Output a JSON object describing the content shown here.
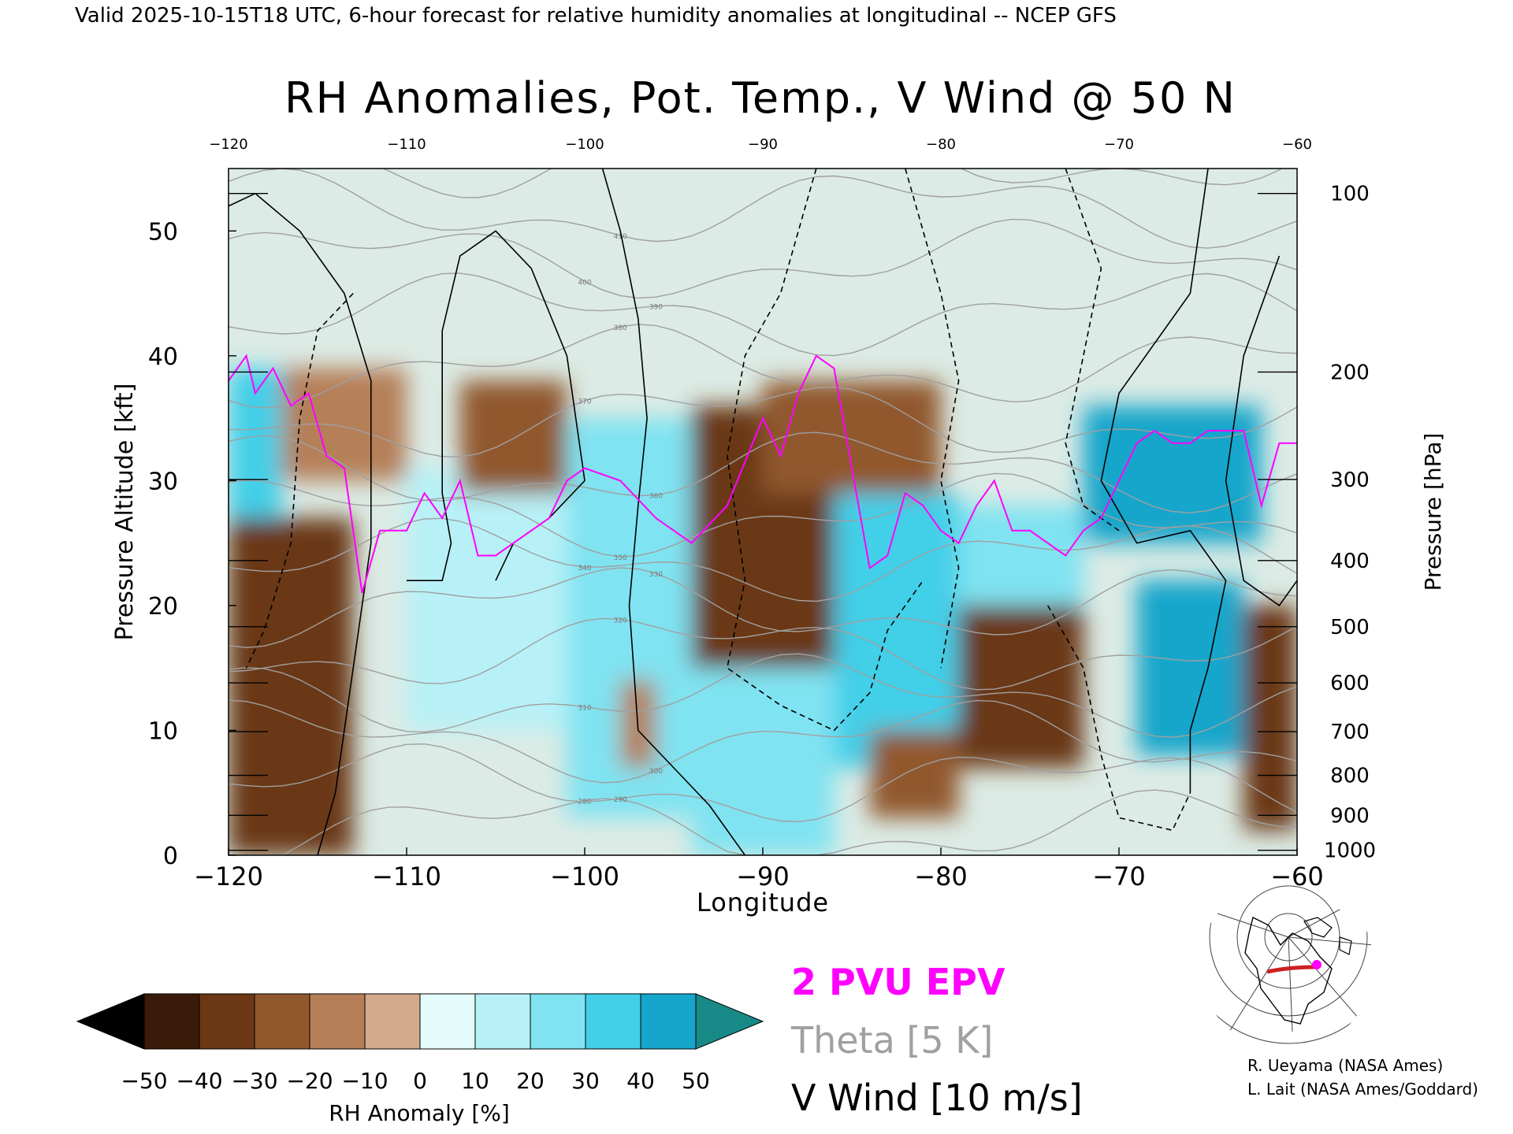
{
  "header": {
    "valid_line": "Valid 2025-10-15T18 UTC, 6-hour forecast for relative humidity anomalies at longitudinal -- NCEP GFS"
  },
  "chart_data": {
    "type": "heatmap",
    "title": "RH Anomalies, Pot. Temp., V Wind @ 50 N",
    "xlabel": "Longitude",
    "ylabel": "Pressure Altitude [kft]",
    "y2label": "Pressure [hPa]",
    "xlim": [
      -120,
      -60
    ],
    "ylim": [
      0,
      55
    ],
    "x_ticks": [
      -120,
      -110,
      -100,
      -90,
      -80,
      -70,
      -60
    ],
    "x_tick_labels": [
      "−120",
      "−110",
      "−100",
      "−90",
      "−80",
      "−70",
      "−60"
    ],
    "top_tick_labels": [
      "−120",
      "−110",
      "−100",
      "−90",
      "−80",
      "−70",
      "−60"
    ],
    "y_ticks": [
      0,
      10,
      20,
      30,
      40,
      50
    ],
    "pressure_ticks": [
      {
        "hPa": "100",
        "kft": 53.0
      },
      {
        "hPa": "200",
        "kft": 38.7
      },
      {
        "hPa": "300",
        "kft": 30.1
      },
      {
        "hPa": "400",
        "kft": 23.6
      },
      {
        "hPa": "500",
        "kft": 18.3
      },
      {
        "hPa": "600",
        "kft": 13.8
      },
      {
        "hPa": "700",
        "kft": 9.9
      },
      {
        "hPa": "800",
        "kft": 6.4
      },
      {
        "hPa": "900",
        "kft": 3.2
      },
      {
        "hPa": "1000",
        "kft": 0.4
      }
    ],
    "rh_regions": [
      {
        "x0": -120,
        "x1": -113,
        "y0": 0,
        "y1": 27,
        "value": -35
      },
      {
        "x0": -120,
        "x1": -117,
        "y0": 27,
        "y1": 39,
        "value": 35
      },
      {
        "x0": -117,
        "x1": -110,
        "y0": 30,
        "y1": 39,
        "value": -20
      },
      {
        "x0": -110,
        "x1": -101,
        "y0": 10,
        "y1": 31,
        "value": 18
      },
      {
        "x0": -107,
        "x1": -101,
        "y0": 29,
        "y1": 38,
        "value": -25
      },
      {
        "x0": -101,
        "x1": -94,
        "y0": 3,
        "y1": 35,
        "value": 20
      },
      {
        "x0": -98,
        "x1": -96,
        "y0": 7,
        "y1": 14,
        "value": -20
      },
      {
        "x0": -94,
        "x1": -86,
        "y0": 15,
        "y1": 36,
        "value": -40
      },
      {
        "x0": -94,
        "x1": -86,
        "y0": 0,
        "y1": 15,
        "value": 22
      },
      {
        "x0": -86,
        "x1": -79,
        "y0": 7,
        "y1": 29,
        "value": 30
      },
      {
        "x0": -90,
        "x1": -80,
        "y0": 29,
        "y1": 38,
        "value": -25
      },
      {
        "x0": -84,
        "x1": -79,
        "y0": 3,
        "y1": 10,
        "value": -30
      },
      {
        "x0": -79,
        "x1": -72,
        "y0": 7,
        "y1": 20,
        "value": -35
      },
      {
        "x0": -79,
        "x1": -72,
        "y0": 20,
        "y1": 28,
        "value": 25
      },
      {
        "x0": -72,
        "x1": -62,
        "y0": 25,
        "y1": 36,
        "value": 45
      },
      {
        "x0": -69,
        "x1": -63,
        "y0": 8,
        "y1": 22,
        "value": 40
      },
      {
        "x0": -63,
        "x1": -60,
        "y0": 2,
        "y1": 20,
        "value": -35
      }
    ],
    "series": [
      {
        "name": "2 PVU EPV",
        "color": "#ff00ff",
        "x": [
          -120,
          -119,
          -118.5,
          -117.5,
          -116.5,
          -115.5,
          -114.5,
          -113.5,
          -112.5,
          -111.5,
          -110,
          -109,
          -108,
          -107,
          -106,
          -105,
          -104,
          -102,
          -101,
          -100,
          -98,
          -96,
          -94,
          -92,
          -90,
          -89,
          -88,
          -87,
          -86,
          -85,
          -84,
          -83,
          -82,
          -81,
          -80,
          -79,
          -78,
          -77,
          -76,
          -75,
          -74,
          -73,
          -72,
          -71,
          -70,
          -69,
          -68,
          -67,
          -66,
          -65,
          -64,
          -63,
          -62,
          -61,
          -60
        ],
        "y": [
          38,
          40,
          37,
          39,
          36,
          37,
          32,
          31,
          21,
          26,
          26,
          29,
          27,
          30,
          24,
          24,
          25,
          27,
          30,
          31,
          30,
          27,
          25,
          28,
          35,
          32,
          37,
          40,
          39,
          31,
          23,
          24,
          29,
          28,
          26,
          25,
          28,
          30,
          26,
          26,
          25,
          24,
          26,
          27,
          30,
          33,
          34,
          33,
          33,
          34,
          34,
          34,
          28,
          33,
          33
        ]
      },
      {
        "name": "Theta [5 K]",
        "color": "#a0a0a0",
        "levels": [
          280,
          290,
          300,
          310,
          320,
          330,
          340,
          350,
          360,
          370,
          380,
          390,
          400,
          410,
          420
        ]
      },
      {
        "name": "V Wind [10 m/s]",
        "color": "#000000"
      }
    ],
    "legend": [
      "2 PVU EPV",
      "Theta [5 K]",
      "V Wind [10 m/s]"
    ],
    "legend_placement": "bottom-center",
    "colorbar": {
      "label": "RH Anomaly [%]",
      "ticks": [
        "−50",
        "−40",
        "−30",
        "−20",
        "−10",
        "0",
        "10",
        "20",
        "30",
        "40",
        "50"
      ],
      "colors": [
        "#3a1a08",
        "#6b3714",
        "#91582e",
        "#b57f58",
        "#d3aa8c",
        "#ecdccf",
        "#e4fbfc",
        "#b7f1f7",
        "#80e3f1",
        "#42cfe8",
        "#16a6cb",
        "#058095"
      ],
      "under_color": "#000000",
      "over_color": "#178a87"
    }
  },
  "map_inset": {
    "description_label": "cross-section location map",
    "line_color": "#cc2222",
    "marker_color": "#ff00ff"
  },
  "credits": {
    "line1": "R. Ueyama (NASA Ames)",
    "line2": "L. Lait (NASA Ames/Goddard)"
  }
}
